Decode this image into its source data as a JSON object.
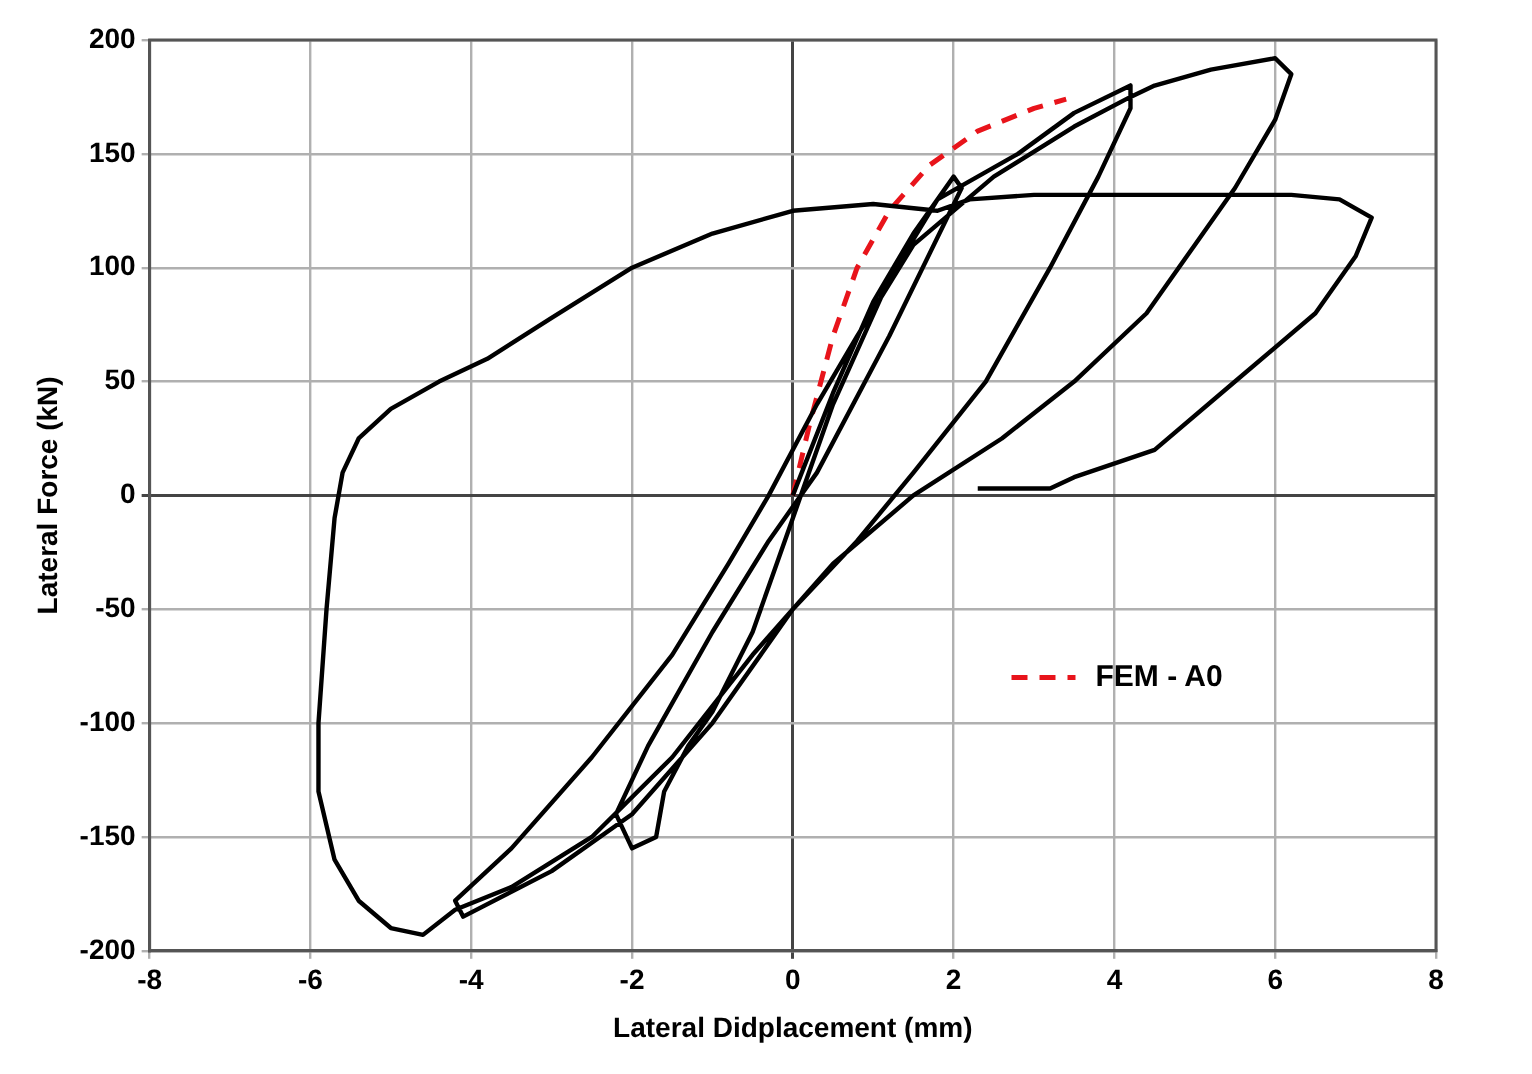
{
  "chart_data": {
    "type": "line",
    "xlabel": "Lateral Didplacement (mm)",
    "ylabel": "Lateral Force (kN)",
    "xlim": [
      -8,
      8
    ],
    "xticks": [
      -8,
      -6,
      -4,
      -2,
      0,
      2,
      4,
      6,
      8
    ],
    "ylim": [
      -200,
      200
    ],
    "yticks": [
      -200,
      -150,
      -100,
      -50,
      0,
      50,
      100,
      150,
      200
    ],
    "grid": true,
    "legend": "right",
    "marker": "none",
    "series": [
      {
        "color": "#000000",
        "line_style": "solid",
        "x": [
          0,
          0.5,
          1,
          1.5,
          2,
          2.1,
          1.2,
          0.3,
          -0.3,
          -1,
          -1.8,
          -2.2,
          -2,
          -1.7,
          -1.6,
          -1.3,
          -1,
          -0.5,
          0,
          0.5,
          1.2,
          1.8,
          2.8,
          3.5,
          4.2,
          4.2,
          3.8,
          3.2,
          2.4,
          1.5,
          0.8,
          0,
          -1,
          -2,
          -3,
          -4.1,
          -4.2,
          -3.5,
          -2.5,
          -1.5,
          -0.8,
          -0.3,
          0.3,
          0.8,
          1.5,
          2.5,
          3.5,
          4.2,
          4.5,
          5.2,
          6,
          6.2,
          6,
          5.5,
          5,
          4.4,
          3.5,
          2.6,
          1.5,
          0.5,
          -0.5,
          -1.5,
          -2.5,
          -3.5,
          -4.2,
          -4.6,
          -5,
          -5.4,
          -5.7,
          -5.9,
          -5.9,
          -5.8,
          -5.7,
          -5.6,
          -5.4,
          -5,
          -4.4,
          -3.8,
          -3,
          -2,
          -1,
          0,
          1,
          1.8,
          2.2,
          3,
          4,
          5,
          6.2,
          6.8,
          7.2,
          7,
          6.5,
          5.5,
          4.5,
          3.5,
          3.2,
          2.3
        ],
        "values": [
          0,
          45,
          85,
          115,
          140,
          135,
          70,
          10,
          -20,
          -60,
          -110,
          -140,
          -155,
          -150,
          -130,
          -110,
          -95,
          -60,
          -10,
          40,
          95,
          130,
          150,
          168,
          180,
          170,
          140,
          100,
          50,
          10,
          -20,
          -50,
          -100,
          -140,
          -165,
          -185,
          -178,
          -155,
          -115,
          -70,
          -30,
          0,
          40,
          70,
          110,
          140,
          162,
          175,
          180,
          187,
          192,
          185,
          165,
          135,
          110,
          80,
          50,
          25,
          0,
          -30,
          -70,
          -115,
          -150,
          -172,
          -182,
          -193,
          -190,
          -178,
          -160,
          -130,
          -100,
          -50,
          -10,
          10,
          25,
          38,
          50,
          60,
          78,
          100,
          115,
          125,
          128,
          125,
          130,
          132,
          132,
          132,
          132,
          130,
          122,
          105,
          80,
          50,
          20,
          8,
          3,
          3
        ]
      },
      {
        "name": "FEM - A0",
        "color": "#e8141b",
        "line_style": "dashed",
        "x": [
          0,
          0.2,
          0.5,
          0.8,
          1.2,
          1.7,
          2.3,
          3,
          3.4
        ],
        "values": [
          0,
          30,
          70,
          100,
          125,
          145,
          160,
          170,
          174
        ]
      }
    ]
  }
}
